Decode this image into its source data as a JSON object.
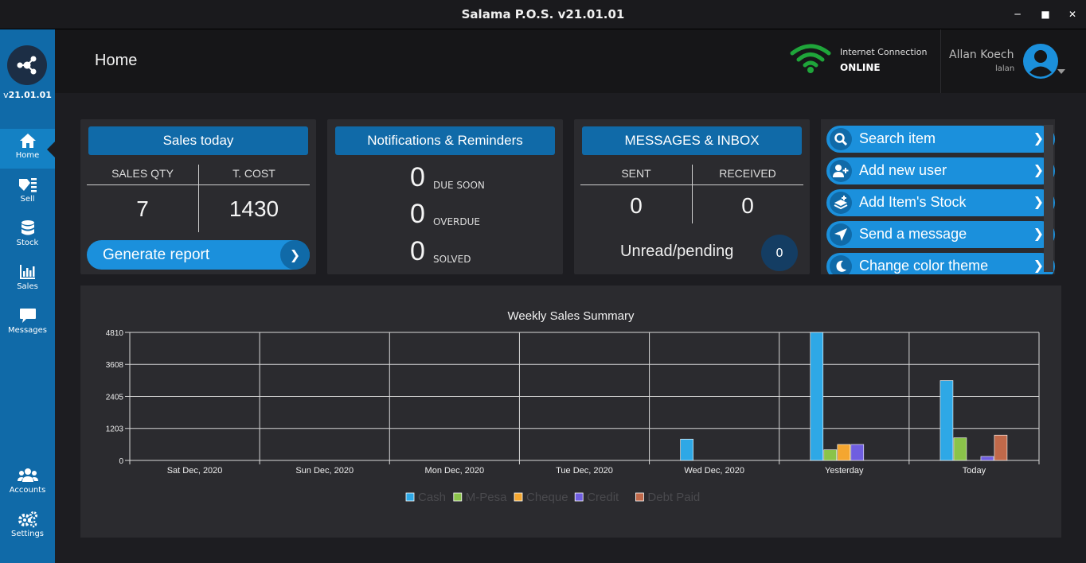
{
  "window": {
    "title": "Salama P.O.S. v21.01.01"
  },
  "sidebar": {
    "version_prefix": "v",
    "version_number": "21.01.01",
    "items": [
      {
        "label": "Home",
        "icon": "home-icon"
      },
      {
        "label": "Sell",
        "icon": "tag-icon"
      },
      {
        "label": "Stock",
        "icon": "database-icon"
      },
      {
        "label": "Sales",
        "icon": "bar-chart-icon"
      },
      {
        "label": "Messages",
        "icon": "chat-icon"
      },
      {
        "label": "Accounts",
        "icon": "users-icon"
      },
      {
        "label": "Settings",
        "icon": "gears-icon"
      }
    ]
  },
  "header": {
    "page_title": "Home",
    "connection_label": "Internet Connection",
    "connection_status": "ONLINE",
    "user_name": "Allan Koech",
    "user_handle": "lalan"
  },
  "sales_today": {
    "title": "Sales today",
    "col1_label": "SALES QTY",
    "col2_label": "T. COST",
    "qty": "7",
    "cost": "1430",
    "report_button": "Generate report"
  },
  "notifications": {
    "title": "Notifications & Reminders",
    "rows": [
      {
        "count": "0",
        "label": "DUE SOON"
      },
      {
        "count": "0",
        "label": "OVERDUE"
      },
      {
        "count": "0",
        "label": "SOLVED"
      }
    ]
  },
  "messages": {
    "title": "MESSAGES & INBOX",
    "sent_label": "SENT",
    "received_label": "RECEIVED",
    "sent": "0",
    "received": "0",
    "unread_label": "Unread/pending",
    "unread": "0"
  },
  "actions": [
    {
      "label": "Search item",
      "icon": "search-icon"
    },
    {
      "label": "Add new user",
      "icon": "add-user-icon"
    },
    {
      "label": "Add Item's Stock",
      "icon": "stack-add-icon"
    },
    {
      "label": "Send a message",
      "icon": "send-icon"
    },
    {
      "label": "Change color theme",
      "icon": "moon-icon"
    }
  ],
  "colors": {
    "accent": "#1b90dc",
    "sidebar": "#106aa8",
    "online": "#1fa53a"
  },
  "chart_data": {
    "type": "bar",
    "title": "Weekly Sales Summary",
    "categories": [
      "Sat Dec, 2020",
      "Sun Dec, 2020",
      "Mon Dec, 2020",
      "Tue Dec, 2020",
      "Wed Dec, 2020",
      "Yesterday",
      "Today"
    ],
    "yticks": [
      "0",
      "1203",
      "2405",
      "3608",
      "4810"
    ],
    "ylim": [
      0,
      4810
    ],
    "grid": true,
    "legend_position": "bottom",
    "series": [
      {
        "name": "Cash",
        "color": "#2ea8e6",
        "values": [
          0,
          0,
          0,
          0,
          800,
          4810,
          3000
        ]
      },
      {
        "name": "M-Pesa",
        "color": "#8bc34a",
        "values": [
          0,
          0,
          0,
          0,
          0,
          400,
          850
        ]
      },
      {
        "name": "Cheque",
        "color": "#f4a630",
        "values": [
          0,
          0,
          0,
          0,
          0,
          600,
          0
        ]
      },
      {
        "name": "Credit",
        "color": "#6f5ee0",
        "values": [
          0,
          0,
          0,
          0,
          0,
          600,
          150
        ]
      },
      {
        "name": "Debt Paid",
        "color": "#c0694a",
        "values": [
          0,
          0,
          0,
          0,
          0,
          0,
          950
        ]
      }
    ]
  }
}
